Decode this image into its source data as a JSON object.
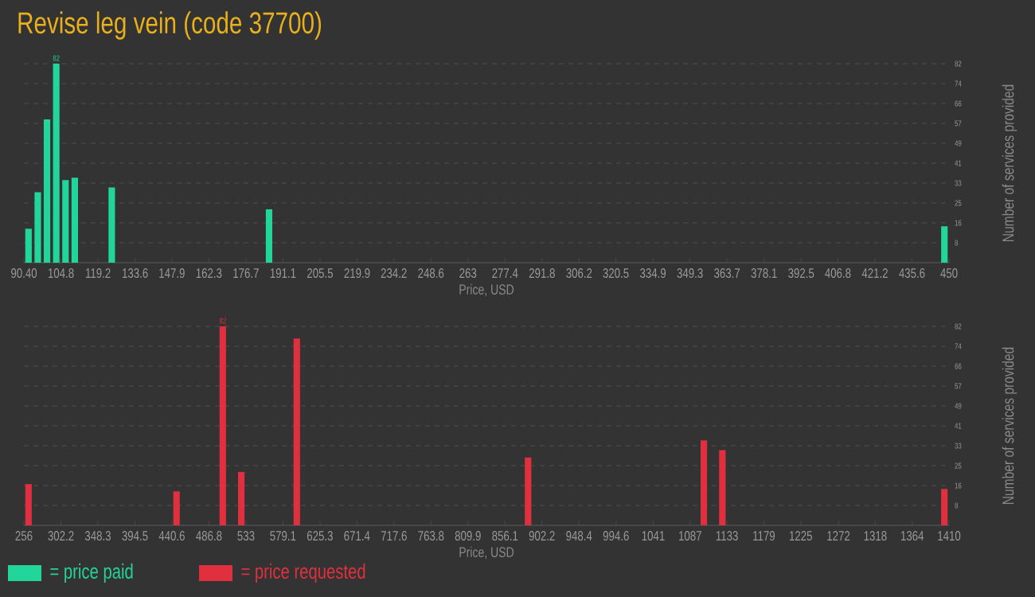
{
  "chart_data": [
    {
      "type": "histogram",
      "title": "Revise leg vein (code 37700)",
      "xlabel": "Price, USD",
      "ylabel": "Number of services provided",
      "bins": [
        90.4,
        94.0,
        97.59,
        101.19,
        104.78,
        108.38,
        111.98,
        122.76,
        126.36,
        183.9,
        187.49,
        446.4,
        450
      ],
      "series": [
        {
          "name": "= price paid",
          "color": "#22d69b",
          "values": [
            14,
            29,
            59,
            82,
            34,
            35,
            0,
            31,
            0,
            22,
            0,
            15
          ],
          "value_labels": [
            null,
            null,
            null,
            "82",
            null,
            null,
            null,
            null,
            null,
            null,
            null,
            null
          ]
        }
      ],
      "xlim": [
        90.4,
        450
      ],
      "xticks": [
        {
          "value": 90.4,
          "label": "90.40"
        },
        104.8,
        119.2,
        133.6,
        147.9,
        162.3,
        176.7,
        191.1,
        205.5,
        219.9,
        234.2,
        248.6,
        263,
        277.4,
        291.8,
        306.2,
        320.5,
        334.9,
        349.3,
        363.7,
        378.1,
        392.5,
        406.8,
        421.2,
        435.6,
        450
      ],
      "ylim": [
        0,
        82
      ],
      "yticks": [
        {
          "value": 8.2,
          "label": "8"
        },
        {
          "value": 16.4,
          "label": "16"
        },
        {
          "value": 24.6,
          "label": "25"
        },
        {
          "value": 32.8,
          "label": "33"
        },
        {
          "value": 41,
          "label": "41"
        },
        {
          "value": 49.2,
          "label": "49"
        },
        {
          "value": 57.4,
          "label": "57"
        },
        {
          "value": 65.6,
          "label": "66"
        },
        {
          "value": 73.8,
          "label": "74"
        },
        {
          "value": 82,
          "label": "82"
        }
      ],
      "grid": "y",
      "legend": "bottom left"
    },
    {
      "type": "histogram",
      "xlabel": "Price, USD",
      "ylabel": "Number of services provided",
      "bins": [
        256,
        267.54,
        440.64,
        452.18,
        498.34,
        509.88,
        521.42,
        532.96,
        590.66,
        602.2,
        879.16,
        890.7,
        1098.42,
        1109.96,
        1121.5,
        1133.04,
        1398.46,
        1410
      ],
      "series": [
        {
          "name": "= price requested",
          "color": "#e0303f",
          "values": [
            17,
            0,
            14,
            0,
            82,
            0,
            22,
            0,
            77,
            0,
            28,
            0,
            35,
            0,
            31,
            0,
            15
          ],
          "value_labels": [
            null,
            null,
            null,
            null,
            "82",
            null,
            null,
            null,
            null,
            null,
            null,
            null,
            null,
            null,
            null,
            null,
            null
          ]
        }
      ],
      "xlim": [
        256,
        1410
      ],
      "xticks": [
        256,
        302.2,
        348.3,
        394.5,
        440.6,
        486.8,
        533,
        579.1,
        625.3,
        671.4,
        717.6,
        763.8,
        809.9,
        856.1,
        902.2,
        948.4,
        994.6,
        1041,
        1087,
        1133,
        1179,
        1225,
        1272,
        1318,
        1364,
        1410
      ],
      "ylim": [
        0,
        82
      ],
      "yticks": [
        {
          "value": 8.2,
          "label": "8"
        },
        {
          "value": 16.4,
          "label": "16"
        },
        {
          "value": 24.6,
          "label": "25"
        },
        {
          "value": 32.8,
          "label": "33"
        },
        {
          "value": 41,
          "label": "41"
        },
        {
          "value": 49.2,
          "label": "49"
        },
        {
          "value": 57.4,
          "label": "57"
        },
        {
          "value": 65.6,
          "label": "66"
        },
        {
          "value": 73.8,
          "label": "74"
        },
        {
          "value": 82,
          "label": "82"
        }
      ],
      "grid": "y",
      "legend": "bottom left"
    }
  ]
}
